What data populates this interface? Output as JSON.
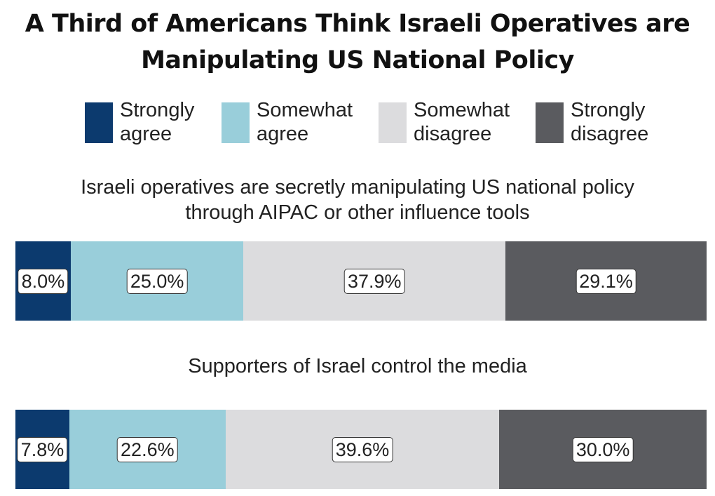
{
  "chart_data": {
    "type": "bar",
    "orientation": "horizontal-stacked",
    "title": [
      "A Third of Americans Think Israeli Operatives are",
      "Manipulating US National Policy"
    ],
    "legend": {
      "placement": "top",
      "items": [
        {
          "lines": [
            "Strongly",
            "agree"
          ],
          "color": "#0c3a6e"
        },
        {
          "lines": [
            "Somewhat",
            "agree"
          ],
          "color": "#99ceda"
        },
        {
          "lines": [
            "Somewhat",
            "disagree"
          ],
          "color": "#dcdcde"
        },
        {
          "lines": [
            "Strongly",
            "disagree"
          ],
          "color": "#5a5b5f"
        }
      ]
    },
    "categories": [
      "Strongly agree",
      "Somewhat agree",
      "Somewhat disagree",
      "Strongly disagree"
    ],
    "panels": [
      {
        "question": [
          "Israeli operatives are secretly manipulating US national policy",
          "through AIPAC or other influence tools"
        ],
        "values": [
          8.0,
          25.0,
          37.9,
          29.1
        ],
        "labels": [
          "8.0%",
          "25.0%",
          "37.9%",
          "29.1%"
        ]
      },
      {
        "question": [
          "Supporters of Israel control the media"
        ],
        "values": [
          7.8,
          22.6,
          39.6,
          30.0
        ],
        "labels": [
          "7.8%",
          "22.6%",
          "39.6%",
          "30.0%"
        ]
      }
    ]
  }
}
